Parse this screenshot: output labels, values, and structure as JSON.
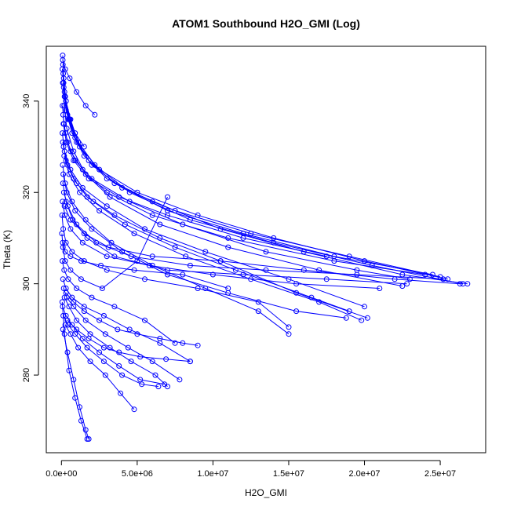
{
  "chart_data": {
    "type": "line",
    "title": "ATOM1 Southbound H2O_GMI (Log)",
    "xlabel": "H2O_GMI",
    "ylabel": "Theta (K)",
    "xlim": [
      -1000000,
      28000000
    ],
    "ylim": [
      263,
      352
    ],
    "x_ticks": [
      {
        "value": 0,
        "label": "0.0e+00"
      },
      {
        "value": 5000000,
        "label": "5.0e+06"
      },
      {
        "value": 10000000,
        "label": "1.0e+07"
      },
      {
        "value": 15000000,
        "label": "1.5e+07"
      },
      {
        "value": 20000000,
        "label": "2.0e+07"
      },
      {
        "value": 25000000,
        "label": "2.5e+07"
      }
    ],
    "y_ticks": [
      {
        "value": 280,
        "label": "280"
      },
      {
        "value": 300,
        "label": "300"
      },
      {
        "value": 320,
        "label": "320"
      },
      {
        "value": 340,
        "label": "340"
      }
    ],
    "series_color": "#0000ff",
    "marker": "open-circle",
    "grid": false,
    "series": [
      {
        "x": [
          80000,
          150000,
          300000,
          600000,
          1200000,
          2500000,
          5000000,
          9000000,
          14000000,
          20000000,
          25500000
        ],
        "y": [
          350,
          345,
          340,
          336,
          330,
          325,
          320,
          315,
          310,
          305,
          301
        ]
      },
      {
        "x": [
          100000,
          200000,
          400000,
          900000,
          1800000,
          3500000,
          7000000,
          12000000,
          18000000,
          24500000
        ],
        "y": [
          348,
          342,
          337,
          332,
          327,
          322,
          316,
          311,
          306,
          302
        ]
      },
      {
        "x": [
          120000,
          250000,
          500000,
          1100000,
          2200000,
          4500000,
          8500000,
          14000000,
          20500000,
          26500000
        ],
        "y": [
          346,
          341,
          336,
          331,
          326,
          320,
          314,
          309,
          304,
          300
        ]
      },
      {
        "x": [
          90000,
          180000,
          350000,
          800000,
          1600000,
          3200000,
          6500000,
          11000000,
          17000000,
          22500000
        ],
        "y": [
          344,
          339,
          334,
          329,
          324,
          319,
          313,
          308,
          303,
          299.5
        ]
      },
      {
        "x": [
          150000,
          300000,
          700000,
          1500000,
          3000000,
          6000000,
          10500000,
          16000000,
          22500000,
          26800000
        ],
        "y": [
          343,
          338,
          333,
          328,
          323,
          318,
          312,
          307,
          302,
          300
        ]
      },
      {
        "x": [
          200000,
          450000,
          1000000,
          2000000,
          4000000,
          7500000,
          12500000,
          19000000,
          25000000
        ],
        "y": [
          341,
          336,
          331,
          326,
          321,
          316,
          311,
          306,
          301.5
        ]
      },
      {
        "x": [
          70000,
          160000,
          400000,
          900000,
          2000000,
          4500000,
          8000000,
          13500000,
          19500000,
          23000000
        ],
        "y": [
          339,
          335,
          331,
          327,
          323,
          318,
          313,
          307,
          303,
          301
        ]
      },
      {
        "x": [
          110000,
          260000,
          600000,
          1400000,
          3000000,
          6000000,
          11000000,
          18000000,
          24000000
        ],
        "y": [
          337,
          333,
          329,
          325,
          320,
          315,
          310,
          305,
          302
        ]
      },
      {
        "x": [
          130000,
          320000,
          800000,
          1800000,
          3800000,
          7000000,
          12000000,
          17500000
        ],
        "y": [
          335,
          331,
          327,
          323,
          319,
          315,
          310,
          306
        ]
      },
      {
        "x": [
          60000,
          200000,
          600000,
          1400000,
          3000000,
          5500000,
          9500000,
          15000000,
          20000000
        ],
        "y": [
          333,
          329,
          325,
          321,
          317,
          312,
          307,
          301,
          295
        ]
      },
      {
        "x": [
          90000,
          300000,
          800000,
          1700000,
          3500000,
          6500000,
          10500000,
          15500000,
          20200000
        ],
        "y": [
          331,
          327,
          323,
          319,
          315,
          310,
          305,
          298,
          292.5
        ]
      },
      {
        "x": [
          140000,
          400000,
          1000000,
          2100000,
          4200000,
          7500000,
          11500000,
          16500000,
          19000000
        ],
        "y": [
          330,
          326,
          322,
          318,
          313,
          308,
          303,
          297,
          294
        ]
      },
      {
        "x": [
          180000,
          500000,
          1200000,
          2500000,
          4800000,
          8200000,
          12500000,
          17000000,
          19800000
        ],
        "y": [
          328,
          324,
          320,
          316,
          311,
          306,
          301,
          296,
          292
        ]
      },
      {
        "x": [
          80000,
          250000,
          700000,
          1600000,
          3300000,
          6000000,
          9500000,
          13000000,
          15000000
        ],
        "y": [
          326,
          322,
          318,
          314,
          309,
          304,
          299,
          294,
          289
        ]
      },
      {
        "x": [
          120000,
          350000,
          900000,
          2000000,
          4000000,
          7000000,
          11000000,
          15500000,
          18800000
        ],
        "y": [
          324,
          320,
          316,
          312,
          307,
          302,
          298,
          294,
          292.5
        ]
      },
      {
        "x": [
          100000,
          300000,
          750000,
          1700000,
          3500000,
          7000000,
          12000000,
          17500000,
          22800000
        ],
        "y": [
          322,
          318,
          314,
          310,
          306,
          303,
          302,
          301,
          300
        ]
      },
      {
        "x": [
          160000,
          420000,
          1000000,
          2300000,
          4600000,
          8500000,
          13500000,
          19500000,
          25200000
        ],
        "y": [
          320,
          317,
          313,
          309,
          306,
          304,
          303,
          302,
          301
        ]
      },
      {
        "x": [
          70000,
          220000,
          600000,
          1400000,
          3000000,
          5800000,
          10000000,
          15500000,
          21000000
        ],
        "y": [
          318,
          315,
          312,
          309,
          306,
          304,
          302,
          300,
          299
        ]
      },
      {
        "x": [
          200000,
          600000,
          1500000,
          3100000,
          6000000,
          10500000,
          16000000,
          22000000,
          26300000
        ],
        "y": [
          317,
          314,
          311,
          308,
          306,
          305,
          303,
          301,
          300
        ]
      },
      {
        "x": [
          40000,
          120000,
          300000,
          700000,
          1500000,
          3000000,
          5500000,
          9000000,
          13000000,
          15000000
        ],
        "y": [
          315,
          312,
          309,
          307,
          305,
          303,
          301,
          299,
          296,
          290.5
        ]
      },
      {
        "x": [
          30000,
          100000,
          250000,
          600000,
          1300000,
          2700000,
          5000000,
          7000000
        ],
        "y": [
          311,
          308,
          305,
          303,
          301,
          299,
          305,
          319
        ]
      },
      {
        "x": [
          80000,
          250000,
          600000,
          1300000,
          2600000,
          4800000,
          8000000,
          11000000
        ],
        "y": [
          309,
          307,
          306,
          305,
          304,
          303,
          302,
          299
        ]
      },
      {
        "x": [
          60000,
          180000,
          450000,
          1000000,
          2000000,
          3500000,
          5500000,
          7500000
        ],
        "y": [
          305,
          303,
          301,
          299,
          297,
          295,
          292,
          287
        ]
      },
      {
        "x": [
          100000,
          300000,
          700000,
          1500000,
          2800000,
          4500000,
          6500000,
          8500000
        ],
        "y": [
          301,
          299,
          297,
          295,
          293,
          290,
          287,
          283
        ]
      },
      {
        "x": [
          150000,
          350000,
          800000,
          1600000,
          2900000,
          4400000,
          6000000,
          7800000
        ],
        "y": [
          299,
          297,
          295,
          292,
          289,
          286,
          283,
          279
        ]
      },
      {
        "x": [
          200000,
          500000,
          1000000,
          1900000,
          3200000,
          4600000,
          6200000,
          7000000
        ],
        "y": [
          297,
          295,
          292,
          289,
          286,
          283,
          280,
          277.5
        ]
      },
      {
        "x": [
          80000,
          300000,
          700000,
          1400000,
          2500000,
          3800000,
          5200000,
          6800000
        ],
        "y": [
          295,
          293,
          291,
          288,
          285,
          282,
          279,
          278
        ]
      },
      {
        "x": [
          120000,
          450000,
          900000,
          1700000,
          2800000,
          4000000,
          5300000,
          6400000
        ],
        "y": [
          293,
          291,
          289,
          286,
          283,
          280,
          278,
          277.5
        ]
      },
      {
        "x": [
          250000,
          600000,
          1100000,
          1900000,
          2900000,
          3900000,
          4800000
        ],
        "y": [
          291,
          289,
          286,
          283,
          280,
          276,
          272.5
        ]
      },
      {
        "x": [
          100000,
          400000,
          800000,
          1200000,
          1600000,
          1800000
        ],
        "y": [
          290,
          285,
          279,
          273,
          268,
          266
        ]
      },
      {
        "x": [
          50000,
          200000,
          500000,
          900000,
          1300000,
          1700000
        ],
        "y": [
          296,
          289,
          281,
          275,
          270,
          266
        ]
      },
      {
        "x": [
          300000,
          800000,
          1500000,
          2500000,
          3700000,
          5000000,
          6500000,
          8000000,
          9000000
        ],
        "y": [
          298,
          296,
          294,
          292,
          290,
          289,
          288,
          287,
          286.5
        ]
      },
      {
        "x": [
          400000,
          1000000,
          1800000,
          2800000,
          3800000,
          5200000,
          6900000,
          8500000
        ],
        "y": [
          292,
          290,
          288,
          286,
          285,
          284,
          283.5,
          283
        ]
      },
      {
        "x": [
          90000,
          250000,
          550000,
          1000000,
          1600000,
          2200000
        ],
        "y": [
          349,
          347,
          345,
          342,
          339,
          337
        ]
      },
      {
        "x": [
          60000,
          140000,
          300000,
          550000,
          900000,
          1500000
        ],
        "y": [
          347,
          344,
          340,
          336,
          333,
          330
        ]
      }
    ]
  }
}
